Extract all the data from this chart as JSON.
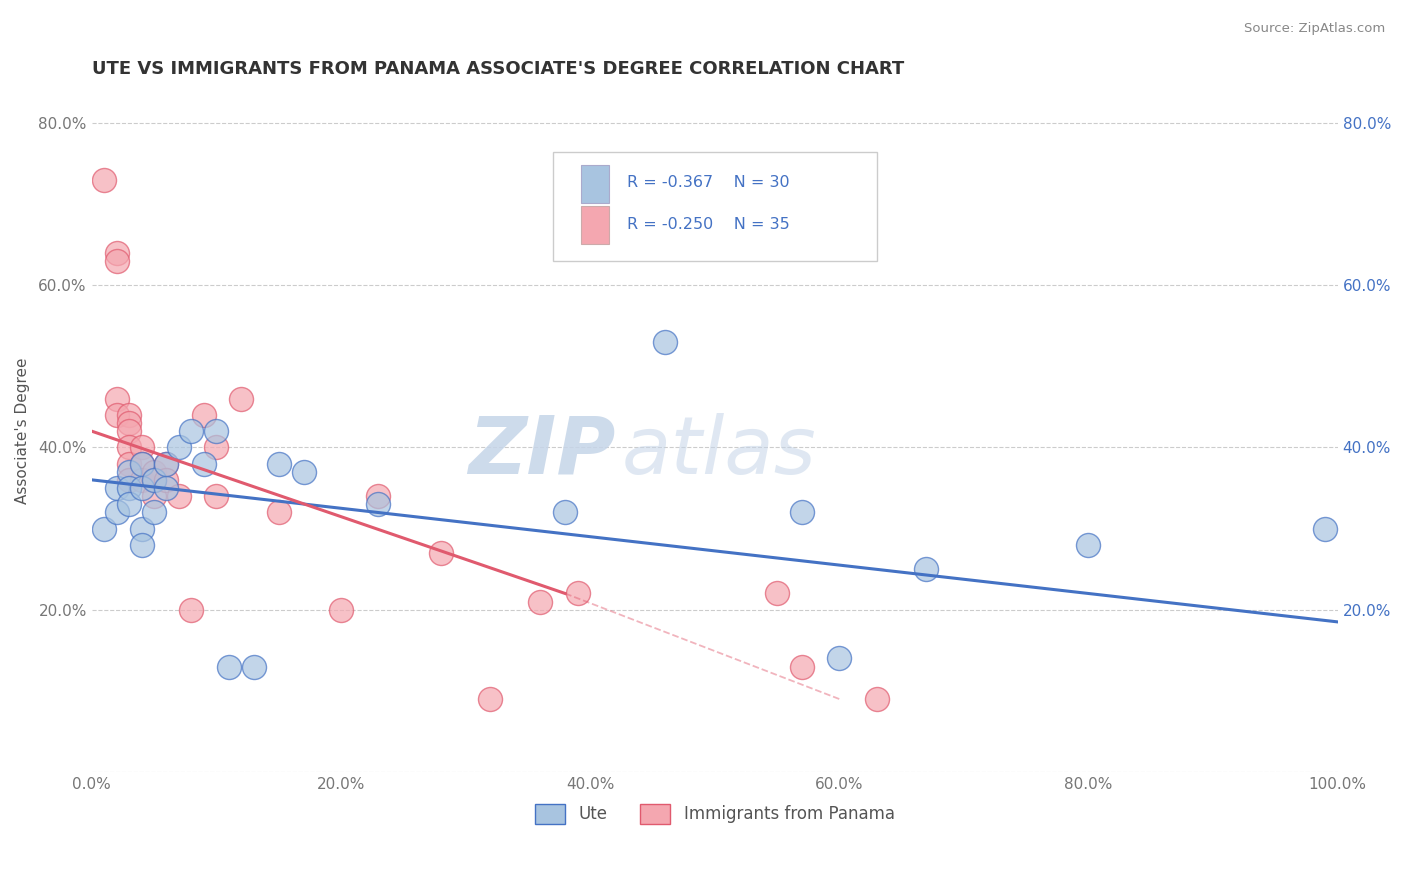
{
  "title": "UTE VS IMMIGRANTS FROM PANAMA ASSOCIATE'S DEGREE CORRELATION CHART",
  "source_text": "Source: ZipAtlas.com",
  "ylabel": "Associate's Degree",
  "xlim": [
    0.0,
    1.0
  ],
  "ylim": [
    0.0,
    0.84
  ],
  "grid_color": "#cccccc",
  "background_color": "#ffffff",
  "watermark_zip": "ZIP",
  "watermark_atlas": "atlas",
  "legend_r1": "R = -0.367",
  "legend_n1": "N = 30",
  "legend_r2": "R = -0.250",
  "legend_n2": "N = 35",
  "color_ute": "#a8c4e0",
  "color_panama": "#f4a7b0",
  "color_ute_line": "#4472c4",
  "color_panama_line": "#e05a6e",
  "color_legend_text": "#4472c4",
  "title_color": "#333333",
  "ute_scatter_x": [
    0.01,
    0.02,
    0.02,
    0.03,
    0.03,
    0.03,
    0.04,
    0.04,
    0.04,
    0.04,
    0.05,
    0.05,
    0.06,
    0.06,
    0.07,
    0.08,
    0.09,
    0.1,
    0.11,
    0.13,
    0.15,
    0.17,
    0.23,
    0.38,
    0.46,
    0.6,
    0.67,
    0.8,
    0.57,
    0.99
  ],
  "ute_scatter_y": [
    0.3,
    0.35,
    0.32,
    0.37,
    0.35,
    0.33,
    0.38,
    0.35,
    0.3,
    0.28,
    0.36,
    0.32,
    0.35,
    0.38,
    0.4,
    0.42,
    0.38,
    0.42,
    0.13,
    0.13,
    0.38,
    0.37,
    0.33,
    0.32,
    0.53,
    0.14,
    0.25,
    0.28,
    0.32,
    0.3
  ],
  "panama_scatter_x": [
    0.01,
    0.02,
    0.02,
    0.02,
    0.02,
    0.03,
    0.03,
    0.03,
    0.03,
    0.03,
    0.03,
    0.04,
    0.04,
    0.04,
    0.05,
    0.05,
    0.05,
    0.06,
    0.06,
    0.07,
    0.08,
    0.09,
    0.1,
    0.1,
    0.12,
    0.15,
    0.2,
    0.23,
    0.28,
    0.32,
    0.36,
    0.39,
    0.55,
    0.57,
    0.63
  ],
  "panama_scatter_y": [
    0.73,
    0.64,
    0.63,
    0.46,
    0.44,
    0.44,
    0.43,
    0.42,
    0.4,
    0.38,
    0.36,
    0.4,
    0.38,
    0.36,
    0.37,
    0.36,
    0.34,
    0.38,
    0.36,
    0.34,
    0.2,
    0.44,
    0.4,
    0.34,
    0.46,
    0.32,
    0.2,
    0.34,
    0.27,
    0.09,
    0.21,
    0.22,
    0.22,
    0.13,
    0.09
  ],
  "ute_line_x": [
    0.0,
    1.0
  ],
  "ute_line_y": [
    0.36,
    0.185
  ],
  "panama_line_x": [
    0.0,
    0.38
  ],
  "panama_line_y": [
    0.42,
    0.22
  ],
  "dashed_line_x": [
    0.38,
    0.6
  ],
  "dashed_line_y": [
    0.22,
    0.09
  ]
}
